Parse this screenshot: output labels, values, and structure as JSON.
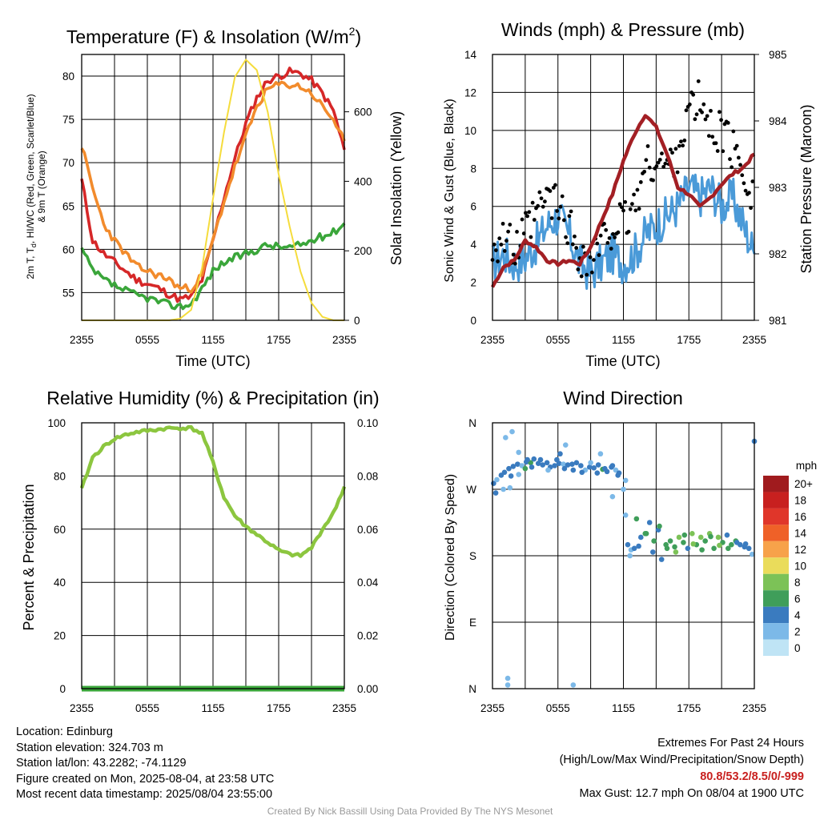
{
  "chart_data": [
    {
      "type": "line",
      "title": "Temperature (F) & Insolation (W/m²)",
      "xlabel": "Time (UTC)",
      "ylabel": "2m T, Td, HI/WC (Red, Green, Scarlet/Blue) & 9m T (Orange)",
      "y2label": "Solar Insolation (Yellow)",
      "x_ticks": [
        "2355",
        "0555",
        "1155",
        "1755",
        "2355"
      ],
      "ylim": [
        51.8,
        82.5
      ],
      "y_ticks": [
        55,
        60,
        65,
        70,
        75,
        80
      ],
      "y2lim": [
        0,
        765
      ],
      "y2_ticks": [
        0,
        200,
        400,
        600
      ],
      "x": [
        0,
        1,
        2,
        3,
        4,
        5,
        6,
        7,
        8,
        9,
        10,
        11,
        12,
        13,
        14,
        15,
        16,
        17,
        18,
        19,
        20,
        21,
        22,
        23,
        24
      ],
      "series": [
        {
          "color": "#d62728",
          "axis": "left",
          "values": [
            68,
            61,
            59.5,
            58.5,
            57.5,
            56.5,
            56,
            55.5,
            54.8,
            54.2,
            54.5,
            56.5,
            61,
            66,
            70.5,
            74.5,
            77.5,
            79.5,
            80,
            80.5,
            80.3,
            79.5,
            78,
            76,
            71.5
          ]
        },
        {
          "color": "#f28b2c",
          "axis": "left",
          "values": [
            72,
            67,
            63,
            61,
            59.5,
            58,
            57.5,
            57,
            56.5,
            55.5,
            55.5,
            57,
            61,
            65.5,
            69.5,
            73,
            76.5,
            78.5,
            79,
            79,
            78.8,
            78,
            76.5,
            75,
            72.5
          ]
        },
        {
          "color": "#3aa63a",
          "axis": "left",
          "values": [
            60,
            57.5,
            56.5,
            55.8,
            55.2,
            54.7,
            54.4,
            54,
            53.6,
            53.4,
            53.7,
            55.5,
            57.5,
            58.5,
            59,
            59.5,
            60,
            60.5,
            60.3,
            60.2,
            60.5,
            61,
            61.5,
            62,
            63
          ]
        },
        {
          "color": "#f5dc3c",
          "axis": "right",
          "values": [
            0,
            0,
            0,
            0,
            0,
            0,
            0,
            0,
            0,
            5,
            30,
            150,
            350,
            540,
            700,
            750,
            720,
            600,
            420,
            270,
            140,
            50,
            10,
            0,
            0
          ]
        }
      ]
    },
    {
      "type": "line",
      "title": "Winds (mph) & Pressure (mb)",
      "xlabel": "Time (UTC)",
      "ylabel": "Sonic Wind & Gust (Blue, Black)",
      "y2label": "Station Pressure (Maroon)",
      "x_ticks": [
        "2355",
        "0555",
        "1155",
        "1755",
        "2355"
      ],
      "ylim": [
        0,
        14
      ],
      "y_ticks": [
        0,
        2,
        4,
        6,
        8,
        10,
        12,
        14
      ],
      "y2lim": [
        981,
        985
      ],
      "y2_ticks": [
        981,
        982,
        983,
        984,
        985
      ],
      "x": [
        0,
        1,
        2,
        3,
        4,
        5,
        6,
        7,
        8,
        9,
        10,
        11,
        12,
        13,
        14,
        15,
        16,
        17,
        18,
        19,
        20,
        21,
        22,
        23,
        24
      ],
      "series": [
        {
          "color": "#4a9ad8",
          "values": [
            3,
            3.5,
            3,
            3.3,
            4,
            5,
            5.5,
            4.5,
            3,
            2.5,
            3,
            3.5,
            3,
            3.5,
            4.5,
            5,
            5.5,
            6,
            7,
            6.5,
            7,
            6,
            6.5,
            5,
            3.5
          ]
        },
        {
          "color": "#000000",
          "style": "dots",
          "values": [
            4,
            4.5,
            3.5,
            4.5,
            5.5,
            6.5,
            6,
            5,
            3.5,
            3,
            4,
            5,
            5,
            6,
            8,
            8.5,
            8,
            9,
            11,
            11.5,
            10,
            10,
            9,
            8,
            6.5
          ]
        },
        {
          "color": "#a31f24",
          "axis": "right",
          "values": [
            981.5,
            981.8,
            981.9,
            982.2,
            982.1,
            981.9,
            981.85,
            981.9,
            981.85,
            982.1,
            982.5,
            982.9,
            983.4,
            983.8,
            984.1,
            983.9,
            983.5,
            983.0,
            982.9,
            982.7,
            982.85,
            983.05,
            983.2,
            983.3,
            983.5
          ]
        }
      ]
    },
    {
      "type": "line",
      "title": "Relative Humidity (%) & Precipitation (in)",
      "ylabel": "Percent & Precipitation",
      "x_ticks": [
        "2355",
        "0555",
        "1155",
        "1755",
        "2355"
      ],
      "ylim": [
        0,
        100
      ],
      "y_ticks": [
        0,
        20,
        40,
        60,
        80,
        100
      ],
      "y2lim": [
        0,
        0.1
      ],
      "y2_ticks": [
        "0.00",
        "0.02",
        "0.04",
        "0.06",
        "0.08",
        "0.10"
      ],
      "x": [
        0,
        1,
        2,
        3,
        4,
        5,
        6,
        7,
        8,
        9,
        10,
        11,
        12,
        13,
        14,
        15,
        16,
        17,
        18,
        19,
        20,
        21,
        22,
        23,
        24
      ],
      "series": [
        {
          "color": "#8cc63f",
          "values": [
            75,
            87,
            91,
            94,
            95.5,
            96.5,
            97,
            97.5,
            98,
            98,
            98,
            96,
            85,
            72,
            65,
            61,
            58,
            55,
            52,
            50.5,
            50,
            53,
            60,
            66,
            76
          ]
        },
        {
          "color": "#3aa63a",
          "values": [
            0,
            0,
            0,
            0,
            0,
            0,
            0,
            0,
            0,
            0,
            0,
            0,
            0,
            0,
            0,
            0,
            0,
            0,
            0,
            0,
            0,
            0,
            0,
            0,
            0
          ]
        }
      ]
    },
    {
      "type": "scatter",
      "title": "Wind Direction",
      "ylabel": "Direction (Colored By Speed)",
      "x_ticks": [
        "2355",
        "0555",
        "1155",
        "1755",
        "2355"
      ],
      "y_ticks": [
        "N",
        "E",
        "S",
        "W",
        "N"
      ],
      "ylim": [
        0,
        360
      ],
      "colorbar_title": "mph",
      "colorbar_labels": [
        "20+",
        "18",
        "16",
        "14",
        "12",
        "10",
        "8",
        "6",
        "4",
        "2",
        "0"
      ],
      "colorbar_colors": [
        "#a01b1e",
        "#c8201f",
        "#e0362a",
        "#ef6128",
        "#f7a24a",
        "#eadc5b",
        "#7cc257",
        "#3f9e5a",
        "#3a7bbf",
        "#7cb9e8",
        "#bfe4f5"
      ],
      "points": [
        [
          0.1,
          278,
          3
        ],
        [
          0.4,
          283,
          2
        ],
        [
          0.8,
          289,
          4
        ],
        [
          1.1,
          293,
          3
        ],
        [
          1.5,
          298,
          4
        ],
        [
          1.9,
          301,
          3
        ],
        [
          2.3,
          304,
          4
        ],
        [
          2.7,
          302,
          2
        ],
        [
          3.1,
          307,
          4
        ],
        [
          3.5,
          306,
          5
        ],
        [
          3.8,
          311,
          3
        ],
        [
          4.2,
          305,
          4
        ],
        [
          4.6,
          303,
          4
        ],
        [
          5.0,
          306,
          3
        ],
        [
          5.3,
          300,
          4
        ],
        [
          5.7,
          302,
          3
        ],
        [
          6.1,
          305,
          4
        ],
        [
          6.5,
          304,
          2
        ],
        [
          6.9,
          303,
          4
        ],
        [
          7.3,
          304,
          3
        ],
        [
          7.7,
          306,
          4
        ],
        [
          8.1,
          302,
          3
        ],
        [
          8.5,
          296,
          2
        ],
        [
          8.9,
          300,
          4
        ],
        [
          9.3,
          299,
          3
        ],
        [
          9.7,
          303,
          4
        ],
        [
          10.1,
          297,
          6
        ],
        [
          10.5,
          294,
          3
        ],
        [
          10.9,
          300,
          4
        ],
        [
          11.3,
          296,
          2
        ],
        [
          11.6,
          292,
          4
        ],
        [
          12.0,
          270,
          2
        ],
        [
          12.2,
          235,
          2
        ],
        [
          12.4,
          195,
          3
        ],
        [
          12.7,
          188,
          2
        ],
        [
          13.0,
          190,
          3
        ],
        [
          13.2,
          230,
          6
        ],
        [
          13.6,
          205,
          4
        ],
        [
          14.0,
          210,
          6
        ],
        [
          14.4,
          225,
          4
        ],
        [
          14.8,
          200,
          6
        ],
        [
          15.2,
          215,
          4
        ],
        [
          15.5,
          175,
          4
        ],
        [
          15.9,
          195,
          6
        ],
        [
          16.3,
          200,
          5
        ],
        [
          16.7,
          192,
          6
        ],
        [
          17.1,
          205,
          8
        ],
        [
          17.5,
          198,
          6
        ],
        [
          17.9,
          190,
          4
        ],
        [
          18.3,
          210,
          7
        ],
        [
          18.7,
          195,
          6
        ],
        [
          19.1,
          205,
          8
        ],
        [
          19.5,
          200,
          6
        ],
        [
          19.9,
          210,
          7
        ],
        [
          20.3,
          190,
          6
        ],
        [
          20.7,
          205,
          8
        ],
        [
          21.1,
          198,
          6
        ],
        [
          21.5,
          208,
          4
        ],
        [
          21.9,
          195,
          6
        ],
        [
          22.3,
          200,
          5
        ],
        [
          22.7,
          195,
          4
        ],
        [
          23.1,
          192,
          3
        ],
        [
          23.5,
          190,
          4
        ],
        [
          23.8,
          182,
          2
        ],
        [
          24.0,
          335,
          4
        ],
        [
          0.3,
          265,
          3
        ],
        [
          1.0,
          270,
          2
        ],
        [
          1.7,
          288,
          3
        ],
        [
          2.4,
          290,
          2
        ],
        [
          3.0,
          298,
          5
        ],
        [
          3.6,
          300,
          3
        ],
        [
          4.4,
          310,
          4
        ],
        [
          5.1,
          296,
          2
        ],
        [
          5.9,
          310,
          3
        ],
        [
          6.6,
          298,
          4
        ],
        [
          7.4,
          296,
          3
        ],
        [
          8.2,
          293,
          4
        ],
        [
          9.0,
          306,
          2
        ],
        [
          9.6,
          292,
          3
        ],
        [
          10.3,
          298,
          4
        ],
        [
          11.0,
          302,
          3
        ],
        [
          11.5,
          289,
          4
        ],
        [
          12.6,
          180,
          2
        ],
        [
          13.4,
          193,
          3
        ],
        [
          14.1,
          210,
          5
        ],
        [
          14.7,
          185,
          4
        ],
        [
          15.3,
          220,
          6
        ],
        [
          16.0,
          190,
          5
        ],
        [
          16.8,
          185,
          7
        ],
        [
          17.6,
          208,
          6
        ],
        [
          18.4,
          196,
          7
        ],
        [
          19.2,
          188,
          6
        ],
        [
          20.0,
          206,
          5
        ],
        [
          20.8,
          194,
          7
        ],
        [
          21.6,
          190,
          6
        ],
        [
          22.4,
          198,
          4
        ],
        [
          23.2,
          196,
          3
        ],
        [
          1.2,
          340,
          2
        ],
        [
          1.8,
          348,
          1
        ],
        [
          2.4,
          320,
          2
        ],
        [
          1.6,
          272,
          1
        ],
        [
          3.2,
          310,
          4
        ],
        [
          6.2,
          318,
          3
        ],
        [
          6.7,
          330,
          2
        ],
        [
          9.9,
          318,
          2
        ],
        [
          11.0,
          260,
          1
        ],
        [
          12.2,
          282,
          1
        ],
        [
          1.4,
          5,
          2
        ],
        [
          1.4,
          14,
          1
        ],
        [
          7.4,
          5,
          2
        ]
      ]
    }
  ],
  "panels": {
    "temp": {
      "title_main": "Temperature (F) & Insolation (W/m",
      "title_sup": "2",
      "title_end": ")",
      "ylabel_line1_a": "2m T, T",
      "ylabel_line1_sub": "d",
      "ylabel_line1_b": ", HI/WC (Red, Green, Scarlet/Blue)",
      "ylabel_line2": "& 9m T (Orange)",
      "y2label": "Solar Insolation (Yellow)",
      "xlabel": "Time (UTC)"
    },
    "wind": {
      "title": "Winds (mph) & Pressure (mb)",
      "ylabel": "Sonic Wind & Gust (Blue, Black)",
      "y2label": "Station Pressure (Maroon)",
      "xlabel": "Time (UTC)"
    },
    "rh": {
      "title": "Relative Humidity (%) & Precipitation (in)",
      "ylabel": "Percent & Precipitation"
    },
    "dir": {
      "title": "Wind Direction",
      "ylabel": "Direction (Colored By Speed)"
    }
  },
  "footer": {
    "location": "Location: Edinburg",
    "elevation": "Station elevation: 324.703 m",
    "latlon": "Station lat/lon: 43.2282; -74.1129",
    "created": "Figure created on Mon, 2025-08-04, at 23:58 UTC",
    "recent": "Most recent data timestamp: 2025/08/04 23:55:00",
    "extremes_title": "Extremes For Past 24 Hours",
    "extremes_sub": "(High/Low/Max Wind/Precipitation/Snow Depth)",
    "extremes_values": "80.8/53.2/8.5/0/-999",
    "max_gust": "Max Gust: 12.7 mph On 08/04 at 1900 UTC",
    "credit": "Created By Nick Bassill Using Data Provided By The NYS Mesonet"
  }
}
